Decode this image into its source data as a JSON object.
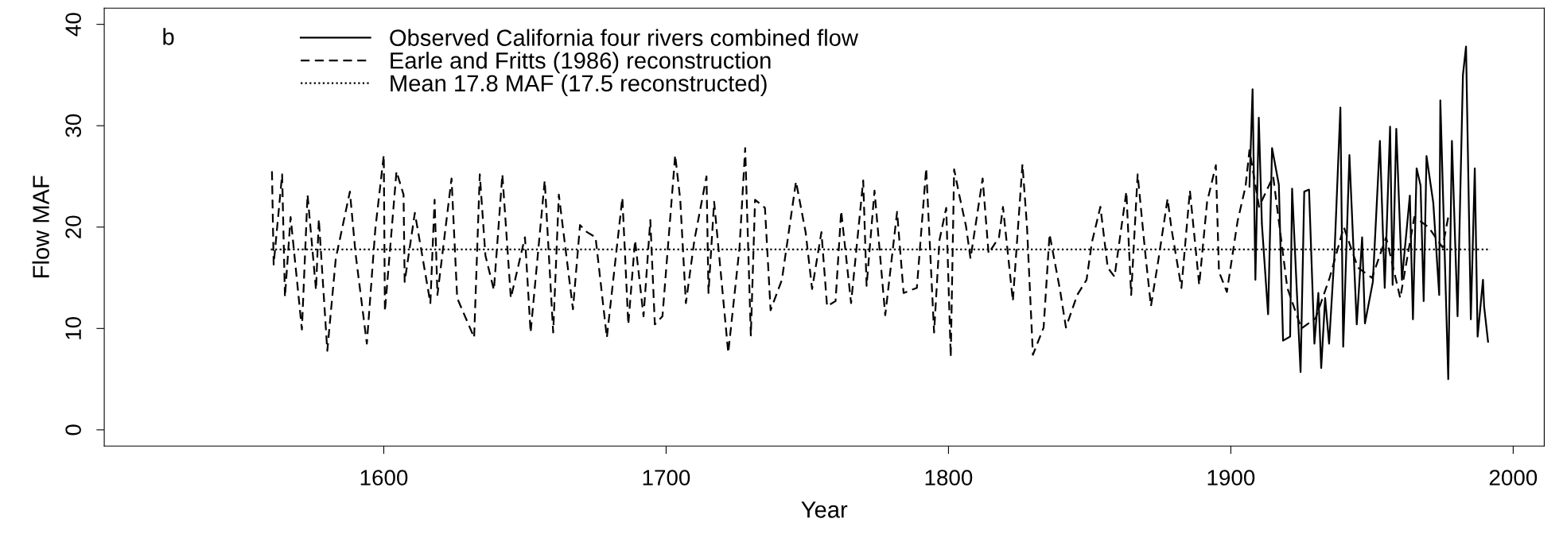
{
  "chart_data": {
    "type": "line",
    "xlabel": "Year",
    "ylabel": "Flow MAF",
    "xlim": [
      1501,
      2011
    ],
    "xticks": [
      1600,
      1700,
      1800,
      1900,
      2000
    ],
    "ylim": [
      -1.6,
      41.6
    ],
    "yticks": [
      0,
      10,
      20,
      30,
      40
    ],
    "grid": false,
    "legend": "top",
    "marker": "none",
    "annotations": [
      {
        "text": "b"
      }
    ],
    "series": [
      {
        "name": "Observed California four rivers combined flow",
        "color": "#000000",
        "line_style": "solid",
        "x": [
          1906.6,
          1907.7,
          1908.7,
          1909.9,
          1911,
          1913.2,
          1914.6,
          1917,
          1918.5,
          1921,
          1921.7,
          1924.7,
          1926,
          1927.7,
          1929.6,
          1931,
          1932,
          1933.4,
          1934.8,
          1936.7,
          1938.8,
          1939.8,
          1942,
          1944.6,
          1946.5,
          1947.5,
          1950.3,
          1952.8,
          1954.5,
          1956.4,
          1957.3,
          1958.6,
          1960.6,
          1963.4,
          1964.5,
          1965.8,
          1967.2,
          1968.3,
          1969.3,
          1971.7,
          1973.8,
          1974.2,
          1977,
          1978.3,
          1980.3,
          1982.2,
          1983.3,
          1985,
          1986.4,
          1987.4,
          1989.3,
          1989.7,
          1991.1
        ],
        "values": [
          24,
          33.6,
          14.8,
          30.8,
          20.3,
          11.4,
          27.8,
          24.2,
          8.8,
          9.2,
          23.8,
          5.7,
          23.5,
          23.7,
          8.5,
          13.5,
          6.1,
          13,
          8.5,
          17.3,
          31.8,
          8.2,
          27.1,
          10.4,
          19,
          10.5,
          14.6,
          28.5,
          14,
          29.9,
          14.3,
          29.7,
          14.8,
          23.1,
          10.9,
          25.8,
          24.1,
          12.7,
          27,
          22.4,
          13.3,
          32.5,
          5,
          28.5,
          11.2,
          35,
          37.8,
          10.9,
          25.8,
          9.2,
          14.8,
          12.2,
          8.7
        ]
      },
      {
        "name": "Earle and Fritts (1986) reconstruction",
        "color": "#000000",
        "line_style": "dashed",
        "x": [
          1560.4,
          1561,
          1564,
          1565,
          1567,
          1571,
          1573,
          1576,
          1577,
          1580,
          1583,
          1588,
          1590,
          1594,
          1597,
          1600,
          1600.4,
          1604.5,
          1607,
          1607.4,
          1611,
          1613,
          1616.5,
          1618,
          1619,
          1624,
          1626,
          1632,
          1634,
          1636,
          1639,
          1642,
          1645,
          1650,
          1652,
          1657,
          1660,
          1662,
          1667,
          1669.5,
          1672,
          1675,
          1679,
          1684.5,
          1686.6,
          1689,
          1692,
          1694.4,
          1696,
          1698.7,
          1703.2,
          1705,
          1707,
          1710,
          1714.3,
          1715,
          1717,
          1722,
          1726,
          1728,
          1730,
          1731.5,
          1735,
          1737,
          1741,
          1746,
          1749.4,
          1751.7,
          1755,
          1757,
          1760,
          1762,
          1765.5,
          1769.8,
          1771,
          1773.8,
          1777.6,
          1781.8,
          1784.1,
          1788.8,
          1792.1,
          1794.9,
          1796.8,
          1799.2,
          1800.8,
          1802,
          1803.8,
          1806.2,
          1807.8,
          1812.1,
          1814.2,
          1817.9,
          1819.3,
          1822.8,
          1826.2,
          1827.8,
          1829.9,
          1833.7,
          1835.8,
          1839.5,
          1841.6,
          1845.6,
          1848.9,
          1850.8,
          1853.8,
          1856.4,
          1858.8,
          1863,
          1864.7,
          1867,
          1869.6,
          1871.7,
          1874.3,
          1877.6,
          1879,
          1882.5,
          1885.5,
          1888.8,
          1891.6,
          1894.7,
          1895.8,
          1898.6,
          1902.4,
          1905.2,
          1906.6,
          1910,
          1915,
          1920,
          1925,
          1930,
          1935,
          1940,
          1945,
          1950,
          1955,
          1960,
          1965,
          1970,
          1975,
          1977
        ],
        "values": [
          25.5,
          16.3,
          25.2,
          13.1,
          21,
          9.9,
          23.2,
          13.8,
          20.8,
          7.8,
          16.9,
          23.5,
          17.4,
          8.5,
          19.8,
          27.1,
          11.7,
          25.5,
          23.2,
          14.6,
          21.4,
          18.2,
          12.5,
          22.7,
          13.3,
          24.8,
          13,
          9.1,
          25.2,
          17.2,
          13.8,
          25.2,
          13,
          19,
          9.6,
          24.6,
          9.6,
          23.2,
          11.9,
          20.2,
          19.5,
          19,
          9.1,
          22.9,
          10.4,
          18.7,
          11.2,
          20.7,
          10.4,
          11.2,
          27.1,
          22.7,
          12.5,
          18.7,
          25,
          13.5,
          22.5,
          7.6,
          18,
          27.8,
          9.3,
          22.7,
          21.9,
          11.8,
          14.8,
          24.5,
          19.5,
          13.9,
          19.5,
          12.2,
          12.7,
          21.6,
          12.5,
          24.6,
          14.2,
          23.6,
          11.3,
          21.5,
          13.5,
          14,
          25.8,
          9.6,
          18.7,
          21.9,
          7.2,
          25.7,
          23.2,
          20.1,
          16.9,
          24.8,
          17.4,
          19,
          22,
          12.7,
          26.2,
          20.1,
          7.4,
          10.1,
          19.3,
          13.8,
          10.1,
          13.3,
          14.8,
          18.5,
          22,
          16,
          15.1,
          23.5,
          13.3,
          25.2,
          17.7,
          12.2,
          16.7,
          22.8,
          19.8,
          14,
          23.6,
          14.3,
          22.5,
          26.1,
          15.6,
          13.6,
          20.6,
          24,
          27.6,
          22,
          25,
          14,
          10,
          11,
          15,
          20,
          16,
          15,
          19,
          13,
          21,
          20,
          18,
          21
        ]
      },
      {
        "name": "Mean 17.8 MAF (17.5 reconstructed)",
        "color": "#000000",
        "line_style": "dotted",
        "x": [
          1560,
          1992
        ],
        "values": [
          17.8,
          17.8
        ]
      }
    ]
  }
}
